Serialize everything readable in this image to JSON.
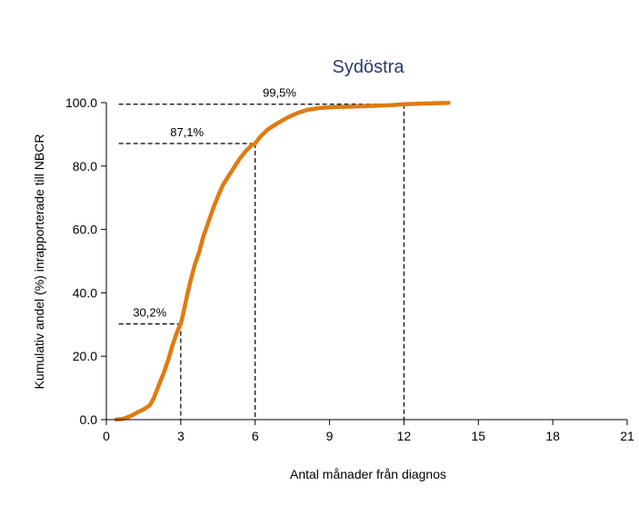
{
  "chart_data": {
    "type": "line",
    "title": "Sydöstra",
    "xlabel": "Antal månader från diagnos",
    "ylabel": "Kumulativ andel (%) inrapporterade till NBCR",
    "xlim": [
      0,
      21
    ],
    "ylim": [
      0,
      100
    ],
    "x_ticks": [
      "0",
      "3",
      "6",
      "9",
      "12",
      "15",
      "18",
      "21"
    ],
    "y_ticks": [
      "0.0",
      "20.0",
      "40.0",
      "60.0",
      "80.0",
      "100.0"
    ],
    "grid": false,
    "series": [
      {
        "color": "#e07b10",
        "points": [
          [
            0.4,
            0
          ],
          [
            0.7,
            0.3
          ],
          [
            1.0,
            1.2
          ],
          [
            1.3,
            2.5
          ],
          [
            1.5,
            3.2
          ],
          [
            1.75,
            4.5
          ],
          [
            1.9,
            6.5
          ],
          [
            2.05,
            9.5
          ],
          [
            2.2,
            12.5
          ],
          [
            2.35,
            15.5
          ],
          [
            2.5,
            19
          ],
          [
            2.65,
            23
          ],
          [
            2.8,
            26.5
          ],
          [
            2.95,
            29.5
          ],
          [
            3.0,
            30.2
          ],
          [
            3.1,
            33.5
          ],
          [
            3.25,
            39
          ],
          [
            3.4,
            44
          ],
          [
            3.55,
            48.5
          ],
          [
            3.75,
            53
          ],
          [
            3.9,
            57.5
          ],
          [
            4.1,
            62
          ],
          [
            4.3,
            66.5
          ],
          [
            4.5,
            70.5
          ],
          [
            4.7,
            74
          ],
          [
            4.9,
            76.5
          ],
          [
            5.1,
            79
          ],
          [
            5.35,
            82
          ],
          [
            5.6,
            84.5
          ],
          [
            5.85,
            86.5
          ],
          [
            6.0,
            87.1
          ],
          [
            6.2,
            89.2
          ],
          [
            6.5,
            91.5
          ],
          [
            6.9,
            93.5
          ],
          [
            7.3,
            95.3
          ],
          [
            7.7,
            96.7
          ],
          [
            8.1,
            97.7
          ],
          [
            8.6,
            98.3
          ],
          [
            9.2,
            98.6
          ],
          [
            10.0,
            98.8
          ],
          [
            10.8,
            99.0
          ],
          [
            11.5,
            99.2
          ],
          [
            12.0,
            99.5
          ],
          [
            12.8,
            99.7
          ],
          [
            13.8,
            99.9
          ]
        ]
      }
    ],
    "reference_lines": [
      {
        "x": 3,
        "y": 30.2,
        "label": "30,2%"
      },
      {
        "x": 6,
        "y": 87.1,
        "label": "87,1%"
      },
      {
        "x": 12,
        "y": 99.5,
        "label": "99,5%"
      }
    ],
    "title_color": "#2b3a6b"
  }
}
